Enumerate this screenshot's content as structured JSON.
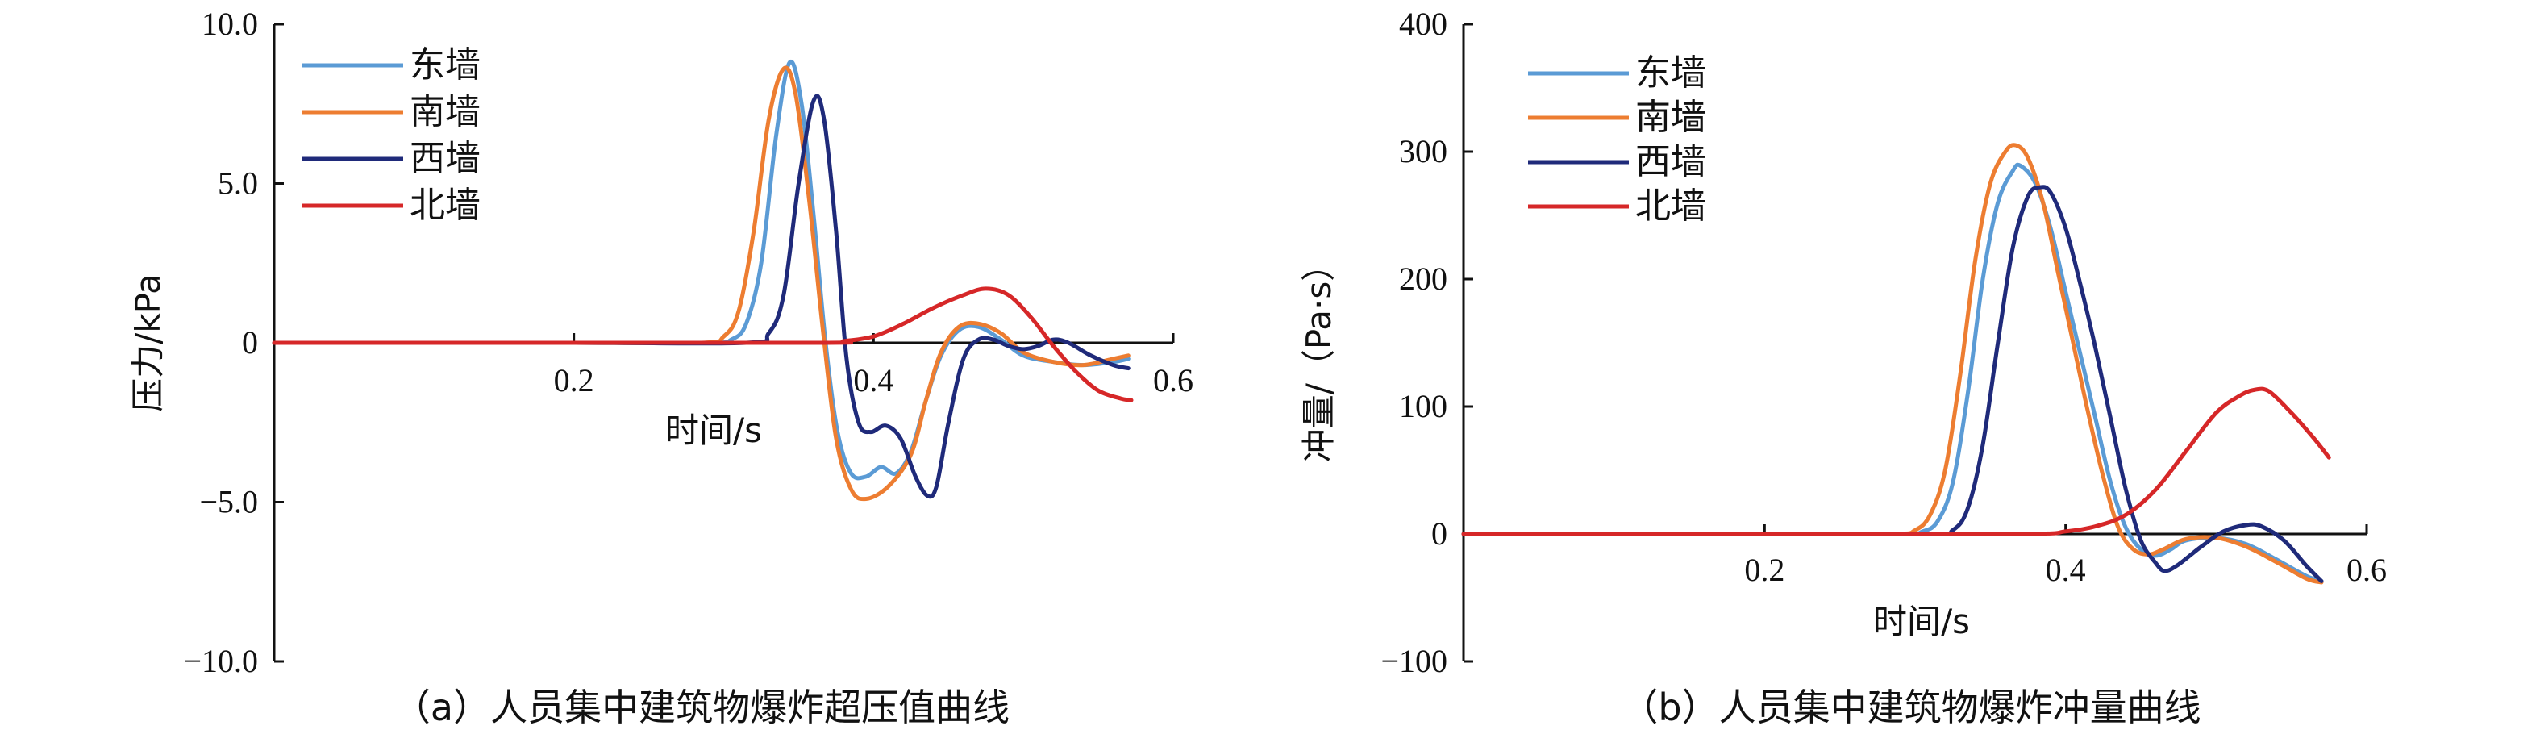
{
  "chart_data": [
    {
      "type": "line",
      "caption": "（a）人员集中建筑物爆炸超压值曲线",
      "xlabel": "时间/s",
      "ylabel": "压力/kPa",
      "xlim": [
        0,
        0.6
      ],
      "ylim": [
        -10,
        10
      ],
      "xticks": [
        "0.2",
        "0.4",
        "0.6"
      ],
      "yticks": [
        "10.0",
        "5.0",
        "0",
        "−5.0",
        "−10.0"
      ],
      "legend_position": "top-left",
      "series": [
        {
          "name": "东墙",
          "color": "#5b9bd5",
          "points": [
            [
              0,
              0
            ],
            [
              0.2,
              0
            ],
            [
              0.29,
              0
            ],
            [
              0.305,
              0.1
            ],
            [
              0.315,
              0.6
            ],
            [
              0.325,
              2.5
            ],
            [
              0.335,
              6.5
            ],
            [
              0.344,
              8.8
            ],
            [
              0.352,
              7.5
            ],
            [
              0.36,
              4.0
            ],
            [
              0.368,
              0.0
            ],
            [
              0.376,
              -2.8
            ],
            [
              0.385,
              -4.1
            ],
            [
              0.395,
              -4.2
            ],
            [
              0.405,
              -3.9
            ],
            [
              0.415,
              -4.1
            ],
            [
              0.425,
              -3.4
            ],
            [
              0.435,
              -1.8
            ],
            [
              0.445,
              -0.4
            ],
            [
              0.457,
              0.4
            ],
            [
              0.47,
              0.5
            ],
            [
              0.485,
              0.1
            ],
            [
              0.5,
              -0.4
            ],
            [
              0.52,
              -0.6
            ],
            [
              0.54,
              -0.7
            ],
            [
              0.56,
              -0.6
            ],
            [
              0.57,
              -0.5
            ]
          ]
        },
        {
          "name": "南墙",
          "color": "#ed7d31",
          "points": [
            [
              0,
              0
            ],
            [
              0.2,
              0
            ],
            [
              0.285,
              0
            ],
            [
              0.3,
              0.2
            ],
            [
              0.31,
              1.0
            ],
            [
              0.32,
              3.5
            ],
            [
              0.33,
              7.0
            ],
            [
              0.34,
              8.6
            ],
            [
              0.348,
              7.8
            ],
            [
              0.357,
              4.5
            ],
            [
              0.366,
              0.5
            ],
            [
              0.375,
              -3.0
            ],
            [
              0.385,
              -4.6
            ],
            [
              0.395,
              -4.9
            ],
            [
              0.41,
              -4.5
            ],
            [
              0.425,
              -3.5
            ],
            [
              0.435,
              -1.8
            ],
            [
              0.445,
              -0.3
            ],
            [
              0.457,
              0.5
            ],
            [
              0.47,
              0.6
            ],
            [
              0.485,
              0.3
            ],
            [
              0.5,
              -0.3
            ],
            [
              0.52,
              -0.6
            ],
            [
              0.54,
              -0.7
            ],
            [
              0.56,
              -0.5
            ],
            [
              0.57,
              -0.4
            ]
          ]
        },
        {
          "name": "西墙",
          "color": "#1f2a7a",
          "points": [
            [
              0,
              0
            ],
            [
              0.2,
              0
            ],
            [
              0.315,
              0
            ],
            [
              0.33,
              0.3
            ],
            [
              0.34,
              1.5
            ],
            [
              0.35,
              5.0
            ],
            [
              0.36,
              7.6
            ],
            [
              0.367,
              7.0
            ],
            [
              0.375,
              3.5
            ],
            [
              0.382,
              -0.5
            ],
            [
              0.39,
              -2.5
            ],
            [
              0.398,
              -2.8
            ],
            [
              0.408,
              -2.6
            ],
            [
              0.418,
              -3.0
            ],
            [
              0.428,
              -4.2
            ],
            [
              0.436,
              -4.8
            ],
            [
              0.442,
              -4.5
            ],
            [
              0.45,
              -2.5
            ],
            [
              0.46,
              -0.5
            ],
            [
              0.47,
              0.1
            ],
            [
              0.48,
              0.1
            ],
            [
              0.49,
              -0.1
            ],
            [
              0.5,
              -0.2
            ],
            [
              0.51,
              -0.1
            ],
            [
              0.52,
              0.1
            ],
            [
              0.53,
              0.0
            ],
            [
              0.545,
              -0.4
            ],
            [
              0.56,
              -0.7
            ],
            [
              0.57,
              -0.8
            ]
          ]
        },
        {
          "name": "北墙",
          "color": "#d62728",
          "points": [
            [
              0,
              0
            ],
            [
              0.2,
              0
            ],
            [
              0.37,
              0
            ],
            [
              0.38,
              0.05
            ],
            [
              0.4,
              0.2
            ],
            [
              0.42,
              0.6
            ],
            [
              0.44,
              1.1
            ],
            [
              0.46,
              1.5
            ],
            [
              0.475,
              1.7
            ],
            [
              0.49,
              1.5
            ],
            [
              0.505,
              0.8
            ],
            [
              0.52,
              -0.1
            ],
            [
              0.535,
              -0.9
            ],
            [
              0.55,
              -1.5
            ],
            [
              0.565,
              -1.75
            ],
            [
              0.572,
              -1.8
            ]
          ]
        }
      ]
    },
    {
      "type": "line",
      "caption": "（b）人员集中建筑物爆炸冲量曲线",
      "xlabel": "时间/s",
      "ylabel": "冲量/（Pa·s）",
      "xlim": [
        0,
        0.6
      ],
      "ylim": [
        -100,
        400
      ],
      "xticks": [
        "0.2",
        "0.4",
        "0.6"
      ],
      "yticks": [
        "400",
        "300",
        "200",
        "100",
        "0",
        "−100"
      ],
      "legend_position": "top-left",
      "series": [
        {
          "name": "东墙",
          "color": "#5b9bd5",
          "points": [
            [
              0,
              0
            ],
            [
              0.2,
              0
            ],
            [
              0.29,
              0
            ],
            [
              0.305,
              2
            ],
            [
              0.315,
              10
            ],
            [
              0.325,
              40
            ],
            [
              0.335,
              110
            ],
            [
              0.345,
              200
            ],
            [
              0.355,
              260
            ],
            [
              0.365,
              285
            ],
            [
              0.37,
              289
            ],
            [
              0.38,
              275
            ],
            [
              0.39,
              240
            ],
            [
              0.4,
              190
            ],
            [
              0.41,
              140
            ],
            [
              0.42,
              90
            ],
            [
              0.43,
              40
            ],
            [
              0.44,
              5
            ],
            [
              0.45,
              -12
            ],
            [
              0.46,
              -17
            ],
            [
              0.47,
              -12
            ],
            [
              0.48,
              -5
            ],
            [
              0.5,
              -3
            ],
            [
              0.52,
              -8
            ],
            [
              0.54,
              -20
            ],
            [
              0.56,
              -33
            ],
            [
              0.57,
              -37
            ]
          ]
        },
        {
          "name": "南墙",
          "color": "#ed7d31",
          "points": [
            [
              0,
              0
            ],
            [
              0.2,
              0
            ],
            [
              0.285,
              0
            ],
            [
              0.3,
              3
            ],
            [
              0.31,
              15
            ],
            [
              0.32,
              50
            ],
            [
              0.33,
              125
            ],
            [
              0.34,
              215
            ],
            [
              0.35,
              275
            ],
            [
              0.36,
              300
            ],
            [
              0.367,
              305
            ],
            [
              0.375,
              295
            ],
            [
              0.385,
              260
            ],
            [
              0.395,
              205
            ],
            [
              0.405,
              150
            ],
            [
              0.415,
              95
            ],
            [
              0.425,
              45
            ],
            [
              0.435,
              5
            ],
            [
              0.445,
              -12
            ],
            [
              0.455,
              -16
            ],
            [
              0.465,
              -12
            ],
            [
              0.48,
              -4
            ],
            [
              0.5,
              -3
            ],
            [
              0.52,
              -10
            ],
            [
              0.54,
              -22
            ],
            [
              0.56,
              -35
            ],
            [
              0.57,
              -38
            ]
          ]
        },
        {
          "name": "西墙",
          "color": "#1f2a7a",
          "points": [
            [
              0,
              0
            ],
            [
              0.2,
              0
            ],
            [
              0.31,
              0
            ],
            [
              0.325,
              3
            ],
            [
              0.335,
              20
            ],
            [
              0.345,
              70
            ],
            [
              0.355,
              150
            ],
            [
              0.365,
              225
            ],
            [
              0.375,
              265
            ],
            [
              0.383,
              272
            ],
            [
              0.39,
              268
            ],
            [
              0.4,
              240
            ],
            [
              0.41,
              195
            ],
            [
              0.42,
              145
            ],
            [
              0.43,
              90
            ],
            [
              0.44,
              35
            ],
            [
              0.45,
              -5
            ],
            [
              0.46,
              -23
            ],
            [
              0.466,
              -29
            ],
            [
              0.475,
              -24
            ],
            [
              0.49,
              -10
            ],
            [
              0.505,
              2
            ],
            [
              0.52,
              7
            ],
            [
              0.53,
              6
            ],
            [
              0.545,
              -5
            ],
            [
              0.56,
              -25
            ],
            [
              0.57,
              -37
            ]
          ]
        },
        {
          "name": "北墙",
          "color": "#d62728",
          "points": [
            [
              0,
              0
            ],
            [
              0.2,
              0
            ],
            [
              0.37,
              0
            ],
            [
              0.4,
              2
            ],
            [
              0.42,
              6
            ],
            [
              0.44,
              15
            ],
            [
              0.46,
              35
            ],
            [
              0.48,
              65
            ],
            [
              0.5,
              95
            ],
            [
              0.515,
              108
            ],
            [
              0.525,
              113
            ],
            [
              0.535,
              112
            ],
            [
              0.55,
              95
            ],
            [
              0.565,
              75
            ],
            [
              0.575,
              60
            ]
          ]
        }
      ]
    }
  ]
}
